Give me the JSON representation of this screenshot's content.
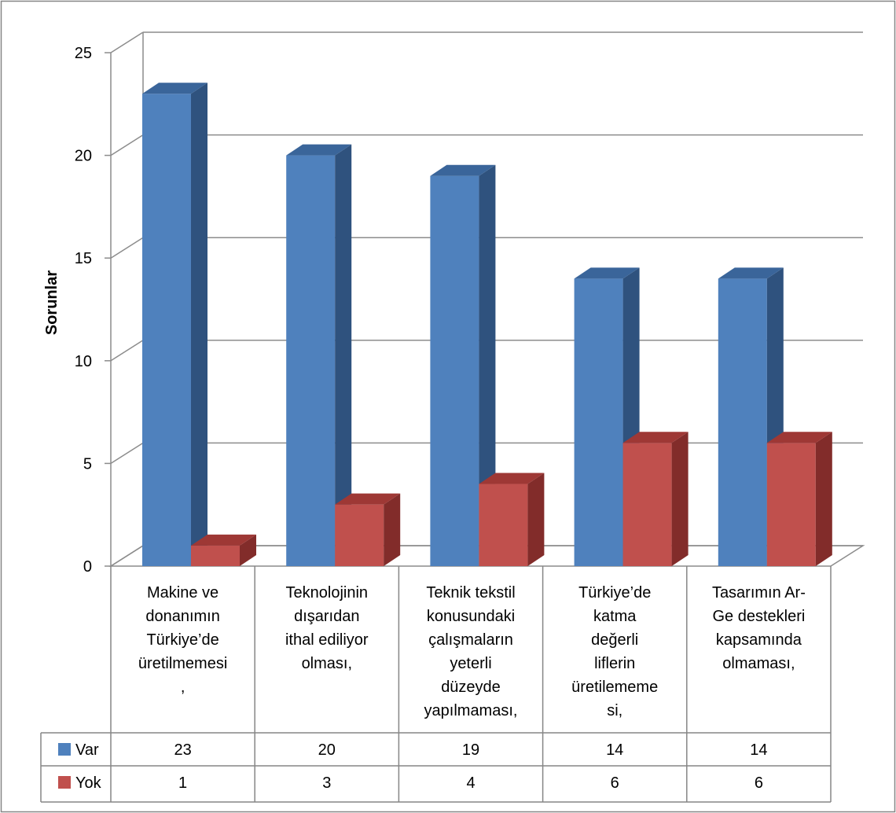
{
  "chart_data": {
    "type": "bar",
    "ylabel": "Sorunlar",
    "xlabel": "",
    "ylim": [
      0,
      25
    ],
    "yticks": [
      "0",
      "5",
      "10",
      "15",
      "20",
      "25"
    ],
    "grid": true,
    "style": "3d-clustered-column-with-data-table",
    "categories": [
      [
        "Makine ve",
        "donanımın",
        "Türkiye’de",
        "üretilmemesi",
        ","
      ],
      [
        "Teknolojinin",
        "dışarıdan",
        "ithal ediliyor",
        "olması,"
      ],
      [
        "Teknik tekstil",
        "konusundaki",
        "çalışmaların",
        "yeterli",
        "düzeyde",
        "yapılmaması,"
      ],
      [
        "Türkiye’de",
        "katma",
        "değerli",
        "liflerin",
        "üretilememe",
        "si,"
      ],
      [
        "Tasarımın Ar-",
        "Ge destekleri",
        "kapsamında",
        "olmaması,"
      ]
    ],
    "series": [
      {
        "name": "Var",
        "values": [
          23,
          20,
          19,
          14,
          14
        ],
        "labels": [
          "23",
          "20",
          "19",
          "14",
          "14"
        ]
      },
      {
        "name": "Yok",
        "values": [
          1,
          3,
          4,
          6,
          6
        ],
        "labels": [
          "1",
          "3",
          "4",
          "6",
          "6"
        ]
      }
    ],
    "colors": {
      "Var": {
        "front": "#4F81BD",
        "side": "#2F527E",
        "top": "#3A659A"
      },
      "Yok": {
        "front": "#C0504D",
        "side": "#822C2A",
        "top": "#9E3835"
      },
      "grid": "#8C8C8C",
      "border": "#868686"
    }
  }
}
